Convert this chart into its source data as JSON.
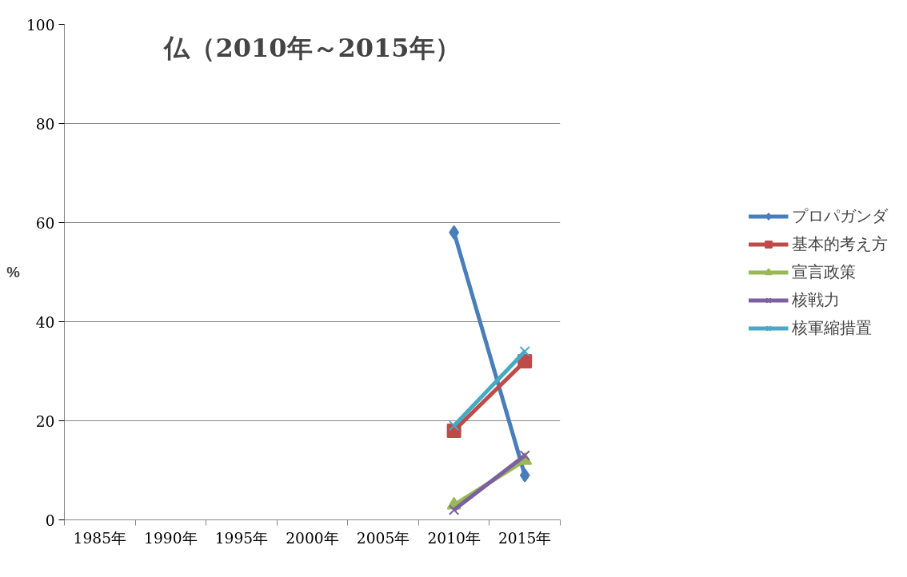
{
  "chart_data": {
    "type": "line",
    "title": "仏（2010年～2015年）",
    "ylabel": "%",
    "categories": [
      "1985年",
      "1990年",
      "1995年",
      "2000年",
      "2005年",
      "2010年",
      "2015年"
    ],
    "series": [
      {
        "name": "プロパガンダ",
        "color": "#4a7ebb",
        "marker": "diamond",
        "values": [
          null,
          null,
          null,
          null,
          null,
          58,
          9
        ]
      },
      {
        "name": "基本的考え方",
        "color": "#be4b48",
        "marker": "square",
        "values": [
          null,
          null,
          null,
          null,
          null,
          18,
          32
        ]
      },
      {
        "name": "宣言政策",
        "color": "#98b954",
        "marker": "triangle",
        "values": [
          null,
          null,
          null,
          null,
          null,
          3,
          12
        ]
      },
      {
        "name": "核戦力",
        "color": "#7d60a0",
        "marker": "cross",
        "values": [
          null,
          null,
          null,
          null,
          null,
          2,
          13
        ]
      },
      {
        "name": "核軍縮措置",
        "color": "#46aac5",
        "marker": "cross",
        "values": [
          null,
          null,
          null,
          null,
          null,
          19,
          34
        ]
      }
    ],
    "ylim": [
      0,
      100
    ],
    "yticks": [
      0,
      20,
      40,
      60,
      80,
      100
    ],
    "grid": "y",
    "legend": "right",
    "line_style": "solid"
  }
}
